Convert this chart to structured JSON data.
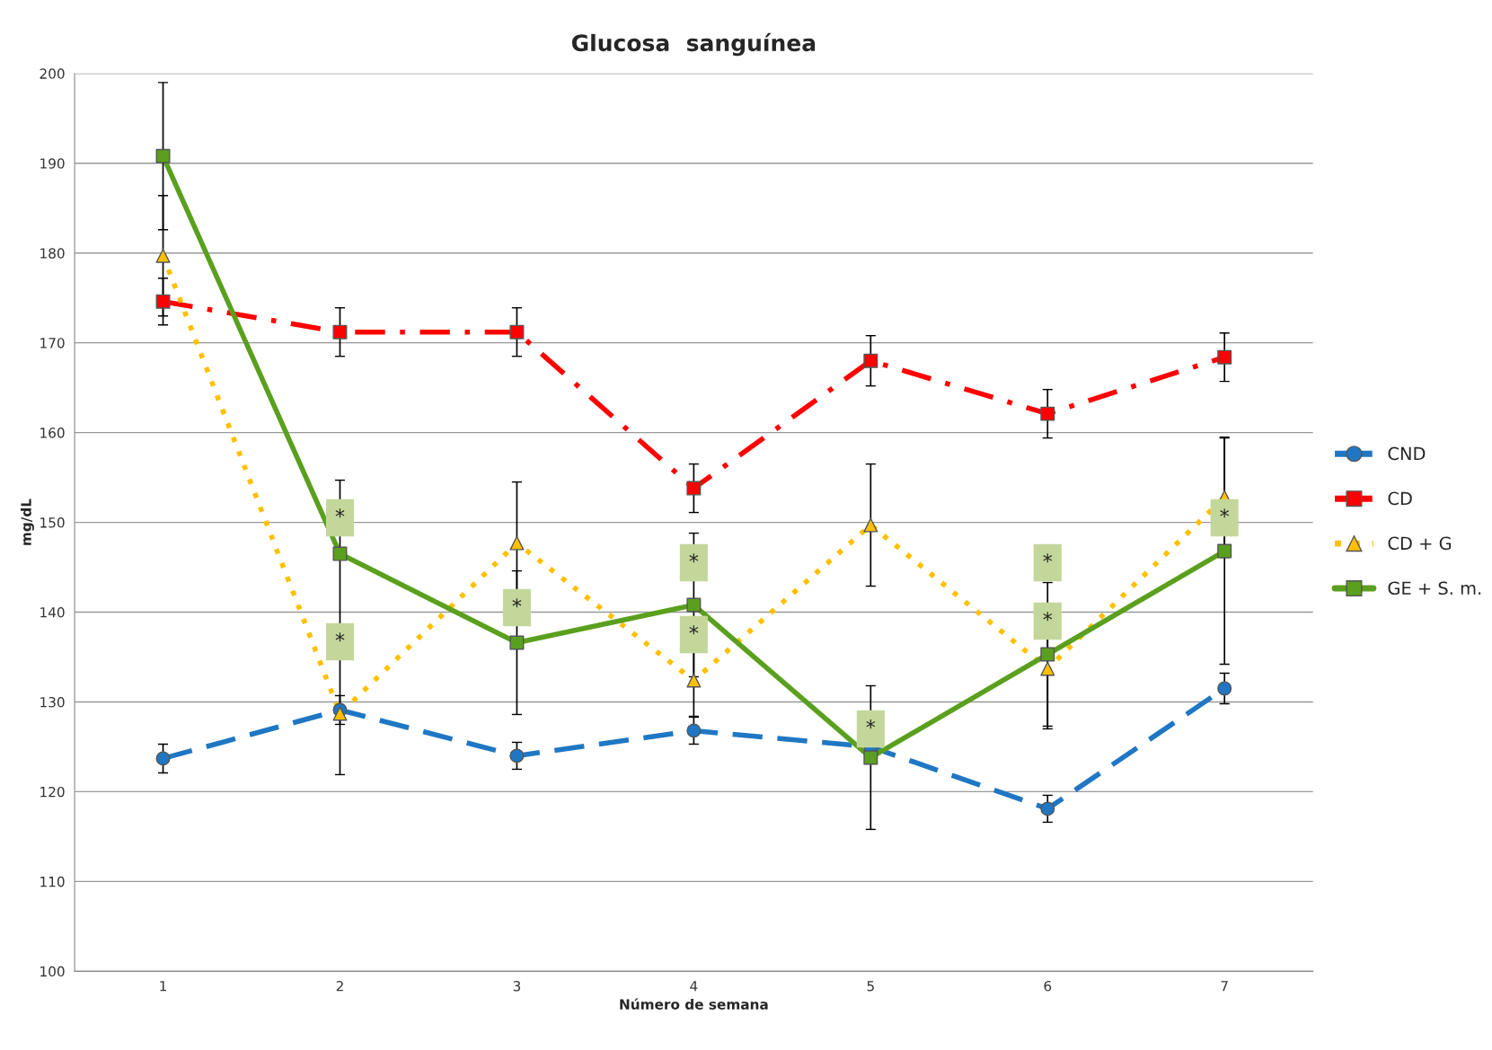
{
  "chart_data": {
    "type": "line",
    "title": "Glucosa  sanguínea",
    "xlabel": "Número de semana",
    "ylabel": "mg/dL",
    "categories": [
      "1",
      "2",
      "3",
      "4",
      "5",
      "6",
      "7"
    ],
    "series": [
      {
        "name": "CND",
        "color": "#1f77c4",
        "marker": "circle",
        "line_style": "dashed",
        "values": [
          123.7,
          129.1,
          124.0,
          126.8,
          125.0,
          118.1,
          131.5
        ],
        "errors": [
          1.6,
          1.6,
          1.5,
          1.5,
          null,
          1.5,
          1.7
        ]
      },
      {
        "name": "CD",
        "color": "#ff0000",
        "marker": "square",
        "line_style": "dashdot",
        "values": [
          174.6,
          171.2,
          171.2,
          153.8,
          168.0,
          162.1,
          168.4
        ],
        "errors": [
          2.6,
          2.7,
          2.7,
          2.7,
          2.8,
          2.7,
          2.7
        ]
      },
      {
        "name": "CD + G",
        "color": "#ffc000",
        "marker": "triangle",
        "line_style": "dotted",
        "values": [
          179.7,
          128.7,
          147.7,
          132.4,
          149.7,
          133.7,
          152.8
        ],
        "errors": [
          6.7,
          6.8,
          6.8,
          4.0,
          6.8,
          6.7,
          6.7
        ]
      },
      {
        "name": "GE + S. m.",
        "color": "#5aa01e",
        "marker": "square",
        "line_style": "solid",
        "values": [
          190.8,
          146.5,
          136.6,
          140.8,
          123.8,
          135.3,
          146.8
        ],
        "errors": [
          8.2,
          8.2,
          8.0,
          8.0,
          8.0,
          8.0,
          12.6
        ]
      }
    ],
    "ylim": [
      100,
      200
    ],
    "yticks": [
      100,
      110,
      120,
      130,
      140,
      150,
      160,
      170,
      180,
      190,
      200
    ],
    "grid": "y",
    "legend": "right",
    "annotations": [
      {
        "text": "*",
        "x": "2",
        "y": 150.5
      },
      {
        "text": "*",
        "x": "2",
        "y": 136.7
      },
      {
        "text": "*",
        "x": "3",
        "y": 140.5
      },
      {
        "text": "*",
        "x": "4",
        "y": 145.5
      },
      {
        "text": "*",
        "x": "4",
        "y": 137.5
      },
      {
        "text": "*",
        "x": "5",
        "y": 127.0
      },
      {
        "text": "*",
        "x": "6",
        "y": 145.5
      },
      {
        "text": "*",
        "x": "6",
        "y": 139.0
      },
      {
        "text": "*",
        "x": "7",
        "y": 150.5
      }
    ]
  }
}
